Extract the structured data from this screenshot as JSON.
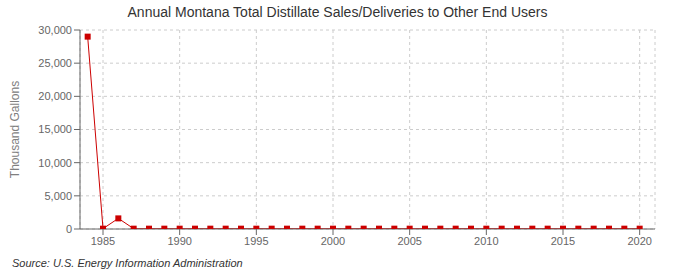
{
  "chart_data": {
    "type": "line",
    "title": "Annual Montana Total Distillate Sales/Deliveries to Other End Users",
    "ylabel": "Thousand Gallons",
    "annotations": [
      "Source: U.S. Energy Information Administration"
    ],
    "x": [
      1984,
      1985,
      1986,
      1987,
      1988,
      1989,
      1990,
      1991,
      1992,
      1993,
      1994,
      1995,
      1996,
      1997,
      1998,
      1999,
      2000,
      2001,
      2002,
      2003,
      2004,
      2005,
      2006,
      2007,
      2008,
      2009,
      2010,
      2011,
      2012,
      2013,
      2014,
      2015,
      2016,
      2017,
      2018,
      2019,
      2020
    ],
    "values": [
      29000,
      50,
      1600,
      50,
      50,
      50,
      50,
      50,
      50,
      50,
      50,
      50,
      50,
      50,
      50,
      50,
      50,
      50,
      50,
      50,
      50,
      50,
      50,
      50,
      50,
      50,
      50,
      50,
      50,
      50,
      50,
      50,
      50,
      50,
      50,
      50,
      50
    ],
    "color": "#cc0000",
    "marker": "square",
    "line_style": "solid",
    "xlim": [
      1983.5,
      2021
    ],
    "xticks": [
      1985,
      1990,
      1995,
      2000,
      2005,
      2010,
      2015,
      2020
    ],
    "ylim": [
      0,
      30000
    ],
    "yticks": [
      0,
      {
        "value": 5000,
        "label": "5,000"
      },
      {
        "value": 10000,
        "label": "10,000"
      },
      {
        "value": 15000,
        "label": "15,000"
      },
      {
        "value": 20000,
        "label": "20,000"
      },
      {
        "value": 25000,
        "label": "25,000"
      },
      {
        "value": 30000,
        "label": "30,000"
      }
    ],
    "grid": true
  }
}
